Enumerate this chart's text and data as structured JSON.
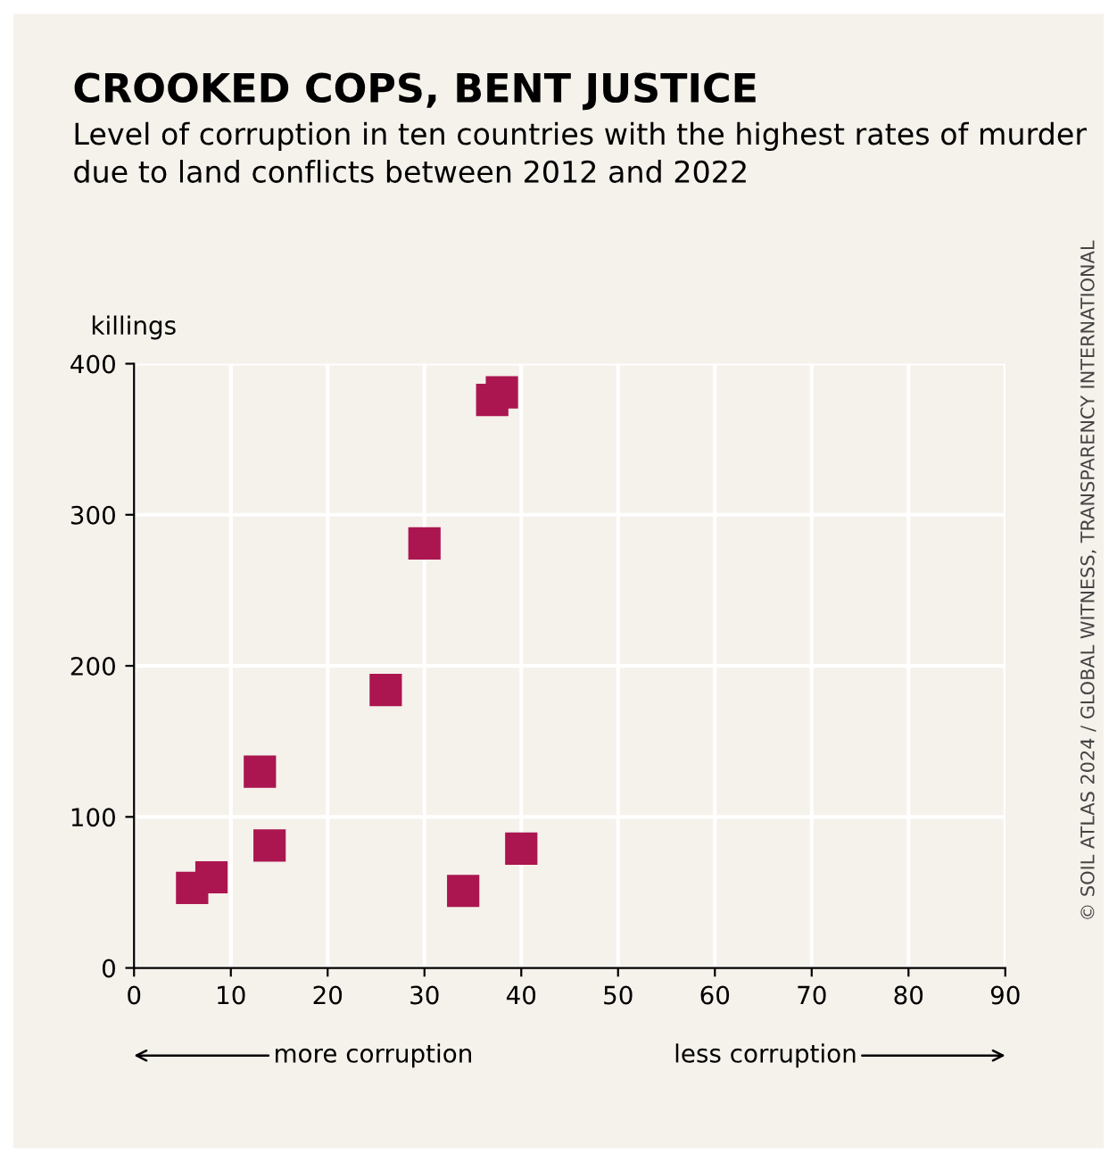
{
  "chart_data": {
    "type": "scatter",
    "title": "CROOKED COPS, BENT JUSTICE",
    "subtitle": "Level of corruption in ten countries with the highest rates of murder due to land conflicts between 2012 and 2022",
    "ylabel": "killings",
    "x": [
      6,
      8,
      13,
      14,
      26,
      30,
      37,
      38,
      34,
      40
    ],
    "series": [
      {
        "color": "#ab1650",
        "values": [
          53,
          60,
          130,
          81,
          184,
          281,
          376,
          381,
          51,
          79
        ]
      }
    ],
    "marker": "square",
    "grid": true,
    "legend": false,
    "xlim": [
      0,
      90
    ],
    "xticks": [
      0,
      10,
      20,
      30,
      40,
      50,
      60,
      70,
      80,
      90
    ],
    "ylim": [
      0,
      400
    ],
    "yticks": [
      0,
      100,
      200,
      300,
      400
    ],
    "annotations": [
      "more corruption",
      "less corruption",
      "© SOIL ATLAS 2024 / GLOBAL WITNESS, TRANSPARENCY INTERNATIONAL"
    ]
  }
}
